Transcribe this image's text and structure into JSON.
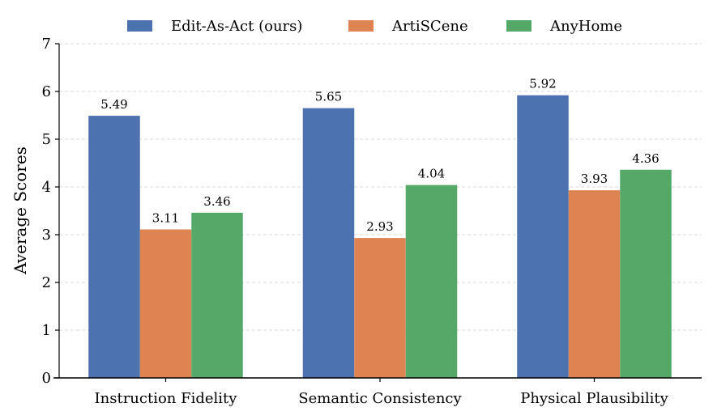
{
  "chart_data": {
    "type": "bar",
    "title": "",
    "xlabel": "",
    "ylabel": "Average Scores",
    "ylim": [
      0,
      7
    ],
    "yticks": [
      0,
      1,
      2,
      3,
      4,
      5,
      6,
      7
    ],
    "grid": "y-dashed",
    "legend_placement": "top-center",
    "categories": [
      "Instruction Fidelity",
      "Semantic Consistency",
      "Physical Plausibility"
    ],
    "series": [
      {
        "name": "Edit-As-Act (ours)",
        "color": "#4c72b0",
        "values": [
          5.49,
          5.65,
          5.92
        ]
      },
      {
        "name": "ArtiSCene",
        "color": "#dd8452",
        "values": [
          3.11,
          2.93,
          3.93
        ]
      },
      {
        "name": "AnyHome",
        "color": "#55a868",
        "values": [
          3.46,
          4.04,
          4.36
        ]
      }
    ]
  }
}
